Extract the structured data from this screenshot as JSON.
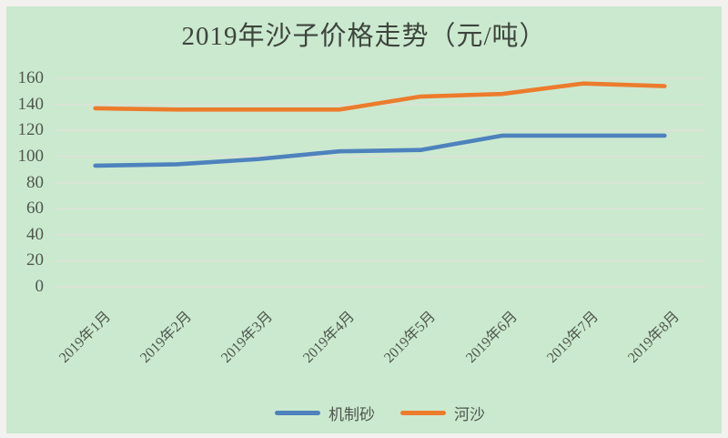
{
  "colors": {
    "background": "#f2f1ee",
    "panel": "#cbe9cf",
    "grid": "#e3dfdb",
    "axis_text": "#4e574e",
    "title_text": "#3d453d",
    "series_blue": "#4e82bd",
    "series_orange": "#ec7c2c"
  },
  "chart_data": {
    "type": "line",
    "title": "2019年沙子价格走势（元/吨）",
    "categories": [
      "2019年1月",
      "2019年2月",
      "2019年3月",
      "2019年4月",
      "2019年5月",
      "2019年6月",
      "2019年7月",
      "2019年8月"
    ],
    "series": [
      {
        "name": "机制砂",
        "color": "#4e82bd",
        "values": [
          93,
          94,
          98,
          104,
          105,
          116,
          116,
          116
        ]
      },
      {
        "name": "河沙",
        "color": "#ec7c2c",
        "values": [
          137,
          136,
          136,
          136,
          146,
          148,
          156,
          154
        ]
      }
    ],
    "xlabel": "",
    "ylabel": "",
    "ylim": [
      0,
      160
    ],
    "yticks": [
      0,
      20,
      40,
      60,
      80,
      100,
      120,
      140,
      160
    ],
    "grid": true,
    "legend_position": "bottom",
    "x_tick_rotation": 45
  }
}
